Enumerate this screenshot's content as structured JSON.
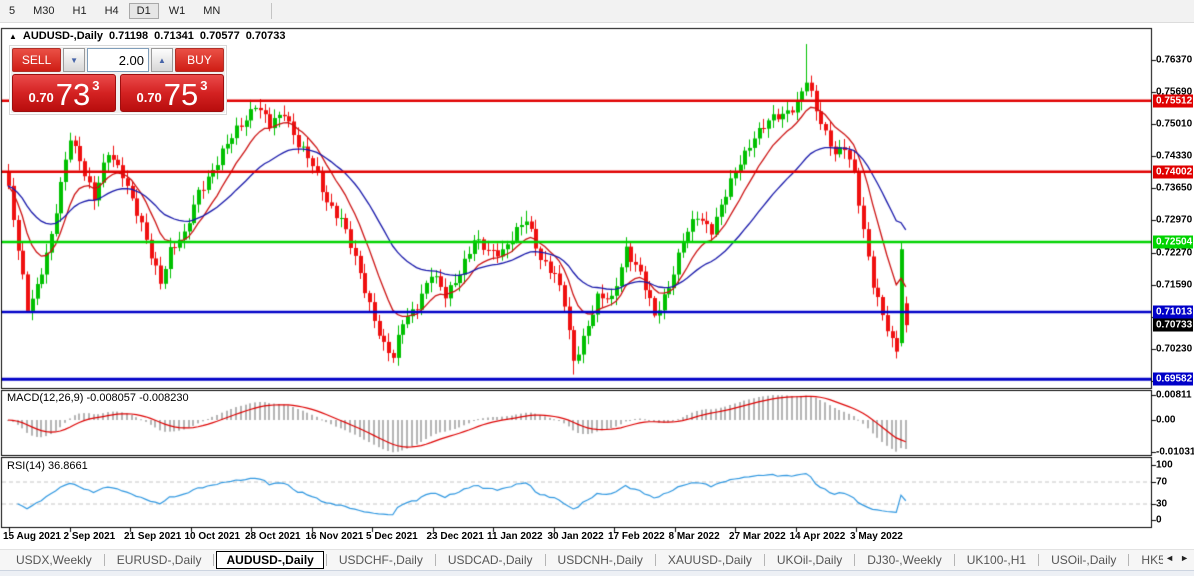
{
  "toolbar": {
    "timeframes": [
      {
        "label": "5",
        "active": false
      },
      {
        "label": "M30",
        "active": false
      },
      {
        "label": "H1",
        "active": false
      },
      {
        "label": "H4",
        "active": false
      },
      {
        "label": "D1",
        "active": true
      },
      {
        "label": "W1",
        "active": false
      },
      {
        "label": "MN",
        "active": false
      }
    ]
  },
  "chart_header": {
    "collapse_icon": "▲",
    "symbol": "AUDUSD-,Daily",
    "ohlc": {
      "open": "0.71198",
      "high": "0.71341",
      "low": "0.70577",
      "close": "0.70733"
    }
  },
  "trade_panel": {
    "sell_label": "SELL",
    "buy_label": "BUY",
    "volume_value": "2.00",
    "spin_down_icon": "▼",
    "spin_up_icon": "▲",
    "sell_quote": {
      "prefix": "0.70",
      "big": "73",
      "pip": "3"
    },
    "buy_quote": {
      "prefix": "0.70",
      "big": "75",
      "pip": "3"
    }
  },
  "price_axis": {
    "ticks": [
      {
        "label": "0.76370",
        "value": 0.7637
      },
      {
        "label": "0.75690",
        "value": 0.7569
      },
      {
        "label": "0.75010",
        "value": 0.7501
      },
      {
        "label": "0.74330",
        "value": 0.7433
      },
      {
        "label": "0.73650",
        "value": 0.7365
      },
      {
        "label": "0.72970",
        "value": 0.7297
      },
      {
        "label": "0.72270",
        "value": 0.7227
      },
      {
        "label": "0.71590",
        "value": 0.7159
      },
      {
        "label": "0.70910",
        "value": 0.7091
      },
      {
        "label": "0.70230",
        "value": 0.7023
      },
      {
        "label": "0.69550",
        "value": 0.6955
      }
    ],
    "badges": [
      {
        "label": "0.75512",
        "value": 0.75512,
        "bg": "#e00000",
        "fg": "#ffffff"
      },
      {
        "label": "0.74002",
        "value": 0.74002,
        "bg": "#e00000",
        "fg": "#ffffff"
      },
      {
        "label": "0.72504",
        "value": 0.72504,
        "bg": "#00d300",
        "fg": "#ffffff"
      },
      {
        "label": "0.71013",
        "value": 0.71013,
        "bg": "#0000c8",
        "fg": "#ffffff"
      },
      {
        "label": "0.70733",
        "value": 0.70733,
        "bg": "#000000",
        "fg": "#ffffff"
      },
      {
        "label": "0.69582",
        "value": 0.69582,
        "bg": "#0000c8",
        "fg": "#ffffff"
      }
    ]
  },
  "macd_panel": {
    "title": "MACD(12,26,9)",
    "values": "-0.008057 -0.008230",
    "axis": [
      {
        "label": "0.00811",
        "value": 0.00811
      },
      {
        "label": "0.00",
        "value": 0
      },
      {
        "label": "-0.010311",
        "value": -0.010311
      }
    ]
  },
  "rsi_panel": {
    "title": "RSI(14)",
    "value": "36.8661",
    "axis": [
      {
        "label": "100",
        "value": 100
      },
      {
        "label": "70",
        "value": 70
      },
      {
        "label": "30",
        "value": 30
      },
      {
        "label": "0",
        "value": 0
      }
    ],
    "level_lines": [
      70,
      30
    ]
  },
  "date_axis": {
    "labels": [
      "15 Aug 2021",
      "2 Sep 2021",
      "21 Sep 2021",
      "10 Oct 2021",
      "28 Oct 2021",
      "16 Nov 2021",
      "5 Dec 2021",
      "23 Dec 2021",
      "11 Jan 2022",
      "30 Jan 2022",
      "17 Feb 2022",
      "8 Mar 2022",
      "27 Mar 2022",
      "14 Apr 2022",
      "3 May 2022"
    ]
  },
  "tab_bar": {
    "tabs": [
      {
        "label": "USDX,Weekly",
        "active": false
      },
      {
        "label": "EURUSD-,Daily",
        "active": false
      },
      {
        "label": "AUDUSD-,Daily",
        "active": true
      },
      {
        "label": "USDCHF-,Daily",
        "active": false
      },
      {
        "label": "USDCAD-,Daily",
        "active": false
      },
      {
        "label": "USDCNH-,Daily",
        "active": false
      },
      {
        "label": "XAUUSD-,Daily",
        "active": false
      },
      {
        "label": "UKOil-,Daily",
        "active": false
      },
      {
        "label": "DJ30-,Weekly",
        "active": false
      },
      {
        "label": "UK100-,H1",
        "active": false
      },
      {
        "label": "USOil-,Daily",
        "active": false
      },
      {
        "label": "HK5",
        "active": false
      }
    ],
    "scroll_left_icon": "◄",
    "scroll_right_icon": "►"
  },
  "chart_data": {
    "type": "candlestick",
    "title": "AUDUSD-,Daily",
    "bars": 190,
    "last_bar": {
      "open": 0.71198,
      "high": 0.71341,
      "low": 0.70577,
      "close": 0.70733
    },
    "close_anchors": [
      [
        0,
        0.736
      ],
      [
        2,
        0.723
      ],
      [
        4,
        0.711
      ],
      [
        6,
        0.716
      ],
      [
        9,
        0.726
      ],
      [
        13,
        0.7475
      ],
      [
        15,
        0.743
      ],
      [
        18,
        0.734
      ],
      [
        21,
        0.744
      ],
      [
        24,
        0.74
      ],
      [
        28,
        0.728
      ],
      [
        30,
        0.722
      ],
      [
        32,
        0.717
      ],
      [
        34,
        0.7235
      ],
      [
        37,
        0.726
      ],
      [
        40,
        0.736
      ],
      [
        44,
        0.742
      ],
      [
        48,
        0.749
      ],
      [
        52,
        0.7545
      ],
      [
        55,
        0.7495
      ],
      [
        58,
        0.753
      ],
      [
        61,
        0.746
      ],
      [
        64,
        0.741
      ],
      [
        67,
        0.734
      ],
      [
        70,
        0.73
      ],
      [
        73,
        0.721
      ],
      [
        76,
        0.712
      ],
      [
        79,
        0.703
      ],
      [
        81,
        0.7
      ],
      [
        83,
        0.708
      ],
      [
        86,
        0.712
      ],
      [
        89,
        0.718
      ],
      [
        92,
        0.7135
      ],
      [
        95,
        0.719
      ],
      [
        98,
        0.725
      ],
      [
        101,
        0.723
      ],
      [
        104,
        0.7235
      ],
      [
        107,
        0.727
      ],
      [
        109,
        0.7295
      ],
      [
        112,
        0.722
      ],
      [
        115,
        0.718
      ],
      [
        117,
        0.7115
      ],
      [
        119,
        0.6995
      ],
      [
        121,
        0.705
      ],
      [
        124,
        0.713
      ],
      [
        127,
        0.7125
      ],
      [
        130,
        0.724
      ],
      [
        133,
        0.718
      ],
      [
        136,
        0.709
      ],
      [
        139,
        0.716
      ],
      [
        142,
        0.725
      ],
      [
        145,
        0.7305
      ],
      [
        148,
        0.728
      ],
      [
        151,
        0.735
      ],
      [
        154,
        0.742
      ],
      [
        157,
        0.748
      ],
      [
        160,
        0.7505
      ],
      [
        163,
        0.752
      ],
      [
        166,
        0.755
      ],
      [
        168,
        0.7595
      ],
      [
        170,
        0.7525
      ],
      [
        172,
        0.748
      ],
      [
        174,
        0.7445
      ],
      [
        176,
        0.7455
      ],
      [
        178,
        0.739
      ],
      [
        180,
        0.727
      ],
      [
        182,
        0.7165
      ],
      [
        184,
        0.71
      ],
      [
        186,
        0.7035
      ],
      [
        187,
        0.7015
      ],
      [
        188,
        0.7235
      ],
      [
        189,
        0.70733
      ]
    ],
    "special_bars": [
      {
        "i": 4,
        "low": 0.7105
      },
      {
        "i": 81,
        "low": 0.6993
      },
      {
        "i": 109,
        "high": 0.7317
      },
      {
        "i": 119,
        "low": 0.6968
      },
      {
        "i": 168,
        "high": 0.7672
      },
      {
        "i": 188,
        "open": 0.7035,
        "high": 0.7252,
        "low": 0.7028,
        "close": 0.7235
      },
      {
        "i": 189,
        "open": 0.71198,
        "high": 0.71341,
        "low": 0.70577,
        "close": 0.70733
      }
    ],
    "horizontal_lines": [
      {
        "price": 0.75512,
        "color": "#e00000",
        "width": 2.5
      },
      {
        "price": 0.74002,
        "color": "#e00000",
        "width": 2.5
      },
      {
        "price": 0.72504,
        "color": "#00d300",
        "width": 2.5
      },
      {
        "price": 0.71013,
        "color": "#0000c8",
        "width": 2.5
      },
      {
        "price": 0.69582,
        "color": "#0000c8",
        "width": 3
      }
    ],
    "moving_averages": [
      {
        "period": 10,
        "color": "#cc1111"
      },
      {
        "period": 28,
        "color": "#1818aa"
      }
    ],
    "macd": {
      "fast": 12,
      "slow": 26,
      "signal": 9,
      "current": -0.008057,
      "current_signal": -0.00823,
      "hist_color": "#b4b4b4",
      "signal_color": "#dd0000",
      "axis_max": 0.00811,
      "axis_min": -0.010311
    },
    "rsi": {
      "period": 14,
      "current": 36.8661,
      "line_color": "#2f97e0",
      "levels": [
        70,
        30
      ]
    },
    "candle_up_color": "#00c000",
    "candle_down_color": "#ef1010",
    "y_axis_range": [
      0.694,
      0.7705
    ]
  }
}
